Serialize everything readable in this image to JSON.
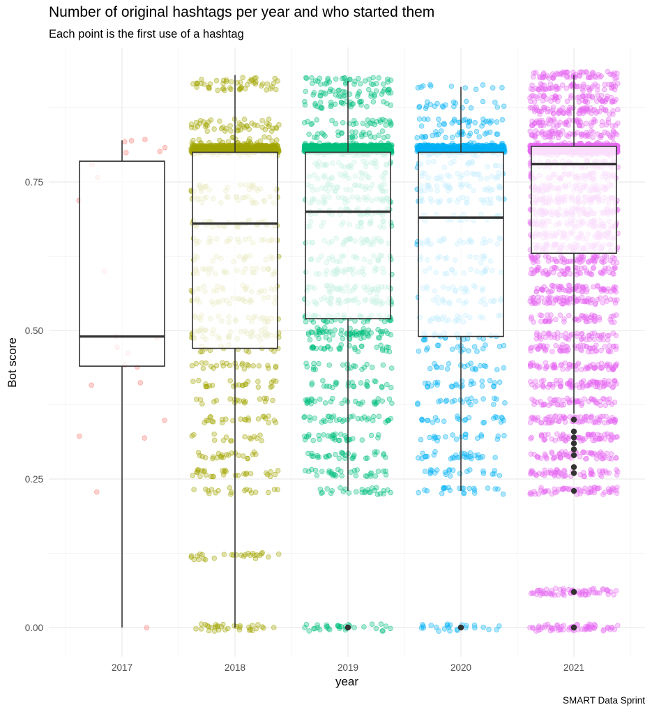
{
  "chart_data": {
    "type": "boxplot",
    "title": "Number of original hashtags per year and who started them",
    "subtitle": "Each point is the first use of a hashtag",
    "xlabel": "year",
    "ylabel": "Bot score",
    "caption": "SMART Data Sprint",
    "categories": [
      "2017",
      "2018",
      "2019",
      "2020",
      "2021"
    ],
    "ylim": [
      -0.035,
      0.975
    ],
    "yticks": [
      0.0,
      0.25,
      0.5,
      0.75
    ],
    "ytick_labels": [
      "0.00",
      "0.25",
      "0.50",
      "0.75"
    ],
    "grid": true,
    "colors": {
      "2017": "#F8766D",
      "2018": "#A3A500",
      "2019": "#00BF7D",
      "2020": "#00B0F6",
      "2021": "#E76BF3"
    },
    "boxes": [
      {
        "category": "2017",
        "min": 0.0,
        "q1": 0.44,
        "median": 0.49,
        "q3": 0.785,
        "max": 0.82,
        "outliers": []
      },
      {
        "category": "2018",
        "min": 0.0,
        "q1": 0.47,
        "median": 0.68,
        "q3": 0.8,
        "max": 0.93,
        "outliers": []
      },
      {
        "category": "2019",
        "min": 0.23,
        "q1": 0.52,
        "median": 0.7,
        "q3": 0.8,
        "max": 0.92,
        "outliers": [
          0.0
        ]
      },
      {
        "category": "2020",
        "min": 0.23,
        "q1": 0.49,
        "median": 0.69,
        "q3": 0.8,
        "max": 0.91,
        "outliers": [
          0.0
        ]
      },
      {
        "category": "2021",
        "min": 0.36,
        "q1": 0.63,
        "median": 0.78,
        "q3": 0.81,
        "max": 0.93,
        "outliers": [
          0.35,
          0.33,
          0.32,
          0.31,
          0.3,
          0.29,
          0.27,
          0.26,
          0.23,
          0.06,
          0.0
        ]
      }
    ],
    "jitter_points": {
      "2017": [
        0.82,
        0.82,
        0.81,
        0.8,
        0.8,
        0.82,
        0.78,
        0.76,
        0.72,
        0.6,
        0.49,
        0.49,
        0.47,
        0.46,
        0.44,
        0.44,
        0.41,
        0.41,
        0.35,
        0.32,
        0.32,
        0.23,
        0.0
      ],
      "2018": {
        "count": 1300,
        "levels": [
          0.92,
          0.91,
          0.85,
          0.84,
          0.82,
          0.81,
          0.8,
          0.74,
          0.72,
          0.68,
          0.65,
          0.62,
          0.6,
          0.57,
          0.55,
          0.52,
          0.5,
          0.49,
          0.47,
          0.44,
          0.41,
          0.38,
          0.35,
          0.32,
          0.29,
          0.26,
          0.23,
          0.12,
          0.0
        ]
      },
      "2019": {
        "count": 1800,
        "levels": [
          0.92,
          0.9,
          0.88,
          0.85,
          0.83,
          0.81,
          0.8,
          0.78,
          0.76,
          0.74,
          0.72,
          0.7,
          0.68,
          0.65,
          0.62,
          0.6,
          0.57,
          0.55,
          0.52,
          0.5,
          0.49,
          0.47,
          0.44,
          0.41,
          0.38,
          0.35,
          0.32,
          0.29,
          0.26,
          0.23,
          0.0
        ]
      },
      "2020": {
        "count": 1100,
        "levels": [
          0.91,
          0.88,
          0.85,
          0.83,
          0.81,
          0.8,
          0.78,
          0.76,
          0.74,
          0.72,
          0.69,
          0.65,
          0.62,
          0.6,
          0.57,
          0.55,
          0.52,
          0.49,
          0.47,
          0.44,
          0.41,
          0.38,
          0.35,
          0.32,
          0.29,
          0.26,
          0.23,
          0.0
        ]
      },
      "2021": {
        "count": 3800,
        "levels": [
          0.93,
          0.91,
          0.89,
          0.87,
          0.85,
          0.83,
          0.81,
          0.8,
          0.78,
          0.76,
          0.74,
          0.72,
          0.7,
          0.68,
          0.66,
          0.64,
          0.62,
          0.6,
          0.57,
          0.55,
          0.52,
          0.49,
          0.47,
          0.44,
          0.41,
          0.38,
          0.35,
          0.32,
          0.29,
          0.26,
          0.23,
          0.06,
          0.0
        ]
      }
    }
  }
}
